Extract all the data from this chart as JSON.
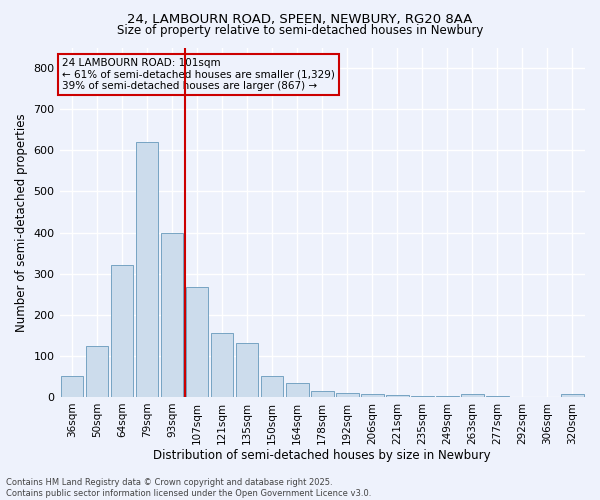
{
  "title_line1": "24, LAMBOURN ROAD, SPEEN, NEWBURY, RG20 8AA",
  "title_line2": "Size of property relative to semi-detached houses in Newbury",
  "xlabel": "Distribution of semi-detached houses by size in Newbury",
  "ylabel": "Number of semi-detached properties",
  "categories": [
    "36sqm",
    "50sqm",
    "64sqm",
    "79sqm",
    "93sqm",
    "107sqm",
    "121sqm",
    "135sqm",
    "150sqm",
    "164sqm",
    "178sqm",
    "192sqm",
    "206sqm",
    "221sqm",
    "235sqm",
    "249sqm",
    "263sqm",
    "277sqm",
    "292sqm",
    "306sqm",
    "320sqm"
  ],
  "values": [
    50,
    125,
    320,
    620,
    400,
    268,
    155,
    132,
    52,
    33,
    15,
    10,
    6,
    4,
    3,
    2,
    8,
    3,
    1,
    1,
    6
  ],
  "bar_color": "#ccdcec",
  "bar_edge_color": "#6699bb",
  "vline_x": 5.0,
  "vline_color": "#cc0000",
  "annotation_title": "24 LAMBOURN ROAD: 101sqm",
  "annotation_line2": "← 61% of semi-detached houses are smaller (1,329)",
  "annotation_line3": "39% of semi-detached houses are larger (867) →",
  "annotation_box_color": "#cc0000",
  "footnote_line1": "Contains HM Land Registry data © Crown copyright and database right 2025.",
  "footnote_line2": "Contains public sector information licensed under the Open Government Licence v3.0.",
  "ylim": [
    0,
    850
  ],
  "yticks": [
    0,
    100,
    200,
    300,
    400,
    500,
    600,
    700,
    800
  ],
  "background_color": "#eef2fc",
  "grid_color": "#ffffff"
}
